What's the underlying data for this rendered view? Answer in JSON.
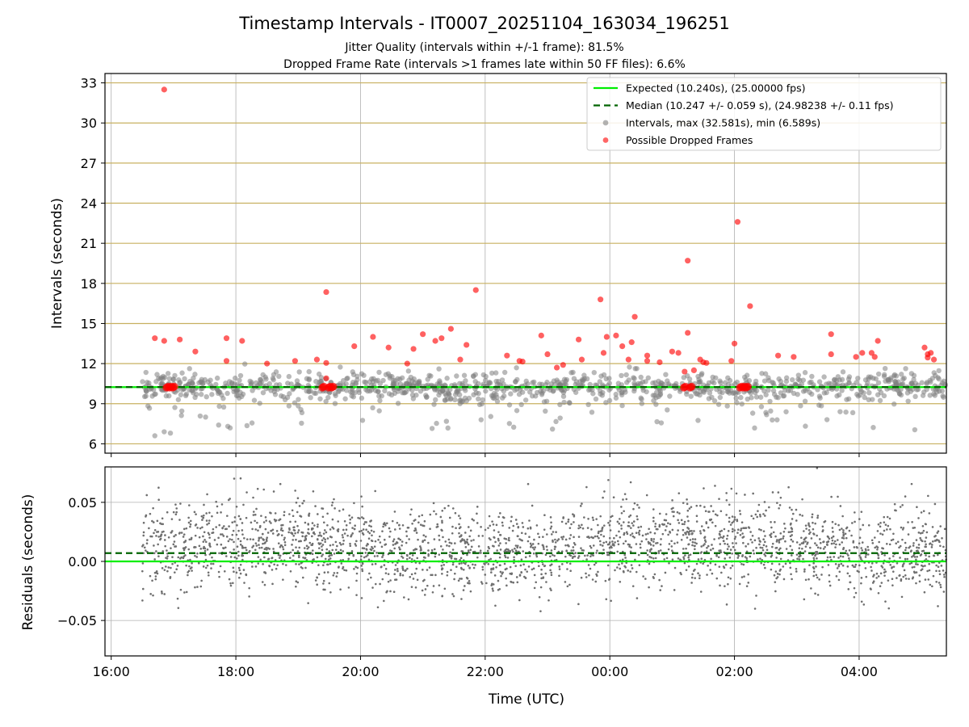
{
  "chart_data": {
    "type": "scatter",
    "title": "Timestamp Intervals - IT0007_20251104_163034_196251",
    "subtitle1": "Jitter Quality (intervals within +/-1 frame): 81.5%",
    "subtitle2": "Dropped Frame Rate (intervals >1 frames late within 50 FF files): 6.6%",
    "top": {
      "ylabel": "Intervals (seconds)",
      "ylim": [
        5.3,
        33.7
      ],
      "yticks": [
        6,
        9,
        12,
        15,
        18,
        21,
        24,
        27,
        30,
        33
      ],
      "expected": 10.24,
      "median": 10.247,
      "legend": [
        {
          "label": "Expected (10.240s), (25.00000 fps)",
          "kind": "solid",
          "color": "#00ee00"
        },
        {
          "label": "Median (10.247 +/- 0.059 s), (24.98238 +/- 0.11 fps)",
          "kind": "dashed",
          "color": "#006400"
        },
        {
          "label": "Intervals, max (32.581s), min (6.589s)",
          "kind": "dot",
          "color": "#808080"
        },
        {
          "label": "Possible Dropped Frames",
          "kind": "dot",
          "color": "#ff0000"
        }
      ],
      "dropped": [
        [
          16.7,
          13.9
        ],
        [
          16.85,
          32.5
        ],
        [
          16.85,
          13.7
        ],
        [
          17.1,
          13.8
        ],
        [
          17.35,
          12.9
        ],
        [
          17.85,
          13.9
        ],
        [
          17.85,
          12.2
        ],
        [
          18.1,
          13.7
        ],
        [
          18.5,
          12
        ],
        [
          18.95,
          12.2
        ],
        [
          19.3,
          12.3
        ],
        [
          19.45,
          17.35
        ],
        [
          19.45,
          12.05
        ],
        [
          19.45,
          10.9
        ],
        [
          19.9,
          13.3
        ],
        [
          20.2,
          14
        ],
        [
          20.45,
          13.2
        ],
        [
          20.75,
          12
        ],
        [
          20.85,
          13.1
        ],
        [
          21.0,
          14.2
        ],
        [
          21.2,
          13.7
        ],
        [
          21.3,
          13.9
        ],
        [
          21.45,
          14.6
        ],
        [
          21.6,
          12.3
        ],
        [
          21.7,
          13.4
        ],
        [
          21.85,
          17.5
        ],
        [
          22.35,
          12.6
        ],
        [
          22.55,
          12.2
        ],
        [
          22.6,
          12.15
        ],
        [
          22.9,
          14.1
        ],
        [
          23.0,
          12.7
        ],
        [
          23.15,
          11.7
        ],
        [
          23.25,
          11.9
        ],
        [
          23.55,
          12.3
        ],
        [
          23.5,
          13.8
        ],
        [
          23.85,
          16.8
        ],
        [
          23.9,
          12.8
        ],
        [
          23.95,
          14
        ],
        [
          24.1,
          14.1
        ],
        [
          24.2,
          13.3
        ],
        [
          24.3,
          12.3
        ],
        [
          24.35,
          13.6
        ],
        [
          24.4,
          15.5
        ],
        [
          24.6,
          12.6
        ],
        [
          24.6,
          12.2
        ],
        [
          24.8,
          12.1
        ],
        [
          25.0,
          12.9
        ],
        [
          25.1,
          12.8
        ],
        [
          25.2,
          11.4
        ],
        [
          25.25,
          14.3
        ],
        [
          25.25,
          19.7
        ],
        [
          25.35,
          11.5
        ],
        [
          25.45,
          12.3
        ],
        [
          25.5,
          12.1
        ],
        [
          25.55,
          12.05
        ],
        [
          25.95,
          12.2
        ],
        [
          26.0,
          13.5
        ],
        [
          26.05,
          22.6
        ],
        [
          26.25,
          16.3
        ],
        [
          26.7,
          12.6
        ],
        [
          26.95,
          12.5
        ],
        [
          27.55,
          14.2
        ],
        [
          27.55,
          12.7
        ],
        [
          27.95,
          12.5
        ],
        [
          28.05,
          12.8
        ],
        [
          28.2,
          12.8
        ],
        [
          28.25,
          12.5
        ],
        [
          28.3,
          13.7
        ],
        [
          29.05,
          13.2
        ],
        [
          29.1,
          12.7
        ],
        [
          29.15,
          12.8
        ],
        [
          29.1,
          12.45
        ],
        [
          29.2,
          12.3
        ]
      ],
      "dropped_clusters": [
        16.9,
        16.95,
        17.0,
        19.4,
        19.5,
        19.55,
        25.2,
        25.3,
        26.1,
        26.15,
        26.2
      ]
    },
    "bottom": {
      "ylabel": "Residuals (seconds)",
      "ylim": [
        -0.08,
        0.08
      ],
      "yticks": [
        -0.05,
        0.0,
        0.05
      ],
      "ytick_labels": [
        "−0.05",
        "0.00",
        "0.05"
      ],
      "expected": 0.0,
      "median": 0.007
    },
    "x": {
      "xlabel": "Time (UTC)",
      "xlim": [
        15.9,
        29.4
      ],
      "data_start": 16.5,
      "data_end": 29.4,
      "xticks": [
        16,
        18,
        20,
        22,
        24,
        26,
        28
      ],
      "xtick_labels": [
        "16:00",
        "18:00",
        "20:00",
        "22:00",
        "00:00",
        "02:00",
        "04:00"
      ]
    },
    "colors": {
      "expected": "#00ee00",
      "median": "#006400",
      "intervals": "#808080",
      "dropped": "#ff0000",
      "hgrid_top": "#c8b060",
      "grid": "#b0b0b0"
    }
  }
}
